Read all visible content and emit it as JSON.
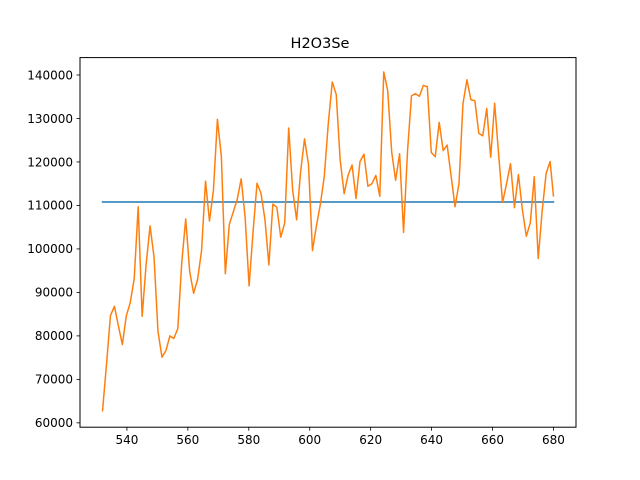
{
  "chart_data": {
    "type": "line",
    "title": "H2O3Se",
    "xlabel": "",
    "ylabel": "",
    "xlim": [
      524.6,
      687.4
    ],
    "ylim": [
      59000,
      144000
    ],
    "x_ticks": [
      540,
      560,
      580,
      600,
      620,
      640,
      660,
      680
    ],
    "y_ticks": [
      60000,
      70000,
      80000,
      90000,
      100000,
      110000,
      120000,
      130000,
      140000
    ],
    "x_tick_labels": [
      "540",
      "560",
      "580",
      "600",
      "620",
      "640",
      "660",
      "680"
    ],
    "y_tick_labels": [
      "60000",
      "70000",
      "80000",
      "90000",
      "100000",
      "110000",
      "120000",
      "130000",
      "140000"
    ],
    "grid": false,
    "legend": "none",
    "series": [
      {
        "color": "#1f77b4",
        "x": [
          532,
          680
        ],
        "y": [
          110800,
          110800
        ]
      },
      {
        "color": "#ff7f0e",
        "x": [
          532,
          533.3,
          534.6,
          535.9,
          537.2,
          538.5,
          539.8,
          541.1,
          542.4,
          543.7,
          545.0,
          546.3,
          547.6,
          548.9,
          550.2,
          551.5,
          552.8,
          554.1,
          555.4,
          556.7,
          558.0,
          559.3,
          560.6,
          561.9,
          563.2,
          564.5,
          565.8,
          567.1,
          568.4,
          569.7,
          571.0,
          572.3,
          573.6,
          574.9,
          576.2,
          577.5,
          578.8,
          580.1,
          581.4,
          582.7,
          584.0,
          585.3,
          586.6,
          587.9,
          589.2,
          590.5,
          591.8,
          593.1,
          594.4,
          595.7,
          597.0,
          598.3,
          599.6,
          600.9,
          602.2,
          603.5,
          604.8,
          606.1,
          607.4,
          608.7,
          610.0,
          611.3,
          612.6,
          613.9,
          615.2,
          616.5,
          617.8,
          619.1,
          620.4,
          621.7,
          623.0,
          624.3,
          625.6,
          626.9,
          628.2,
          629.5,
          630.8,
          632.1,
          633.4,
          634.7,
          636.0,
          637.3,
          638.6,
          639.9,
          641.2,
          642.5,
          643.8,
          645.1,
          646.4,
          647.7,
          649.0,
          650.3,
          651.6,
          652.9,
          654.2,
          655.5,
          656.8,
          658.1,
          659.4,
          660.7,
          662.0,
          663.3,
          664.6,
          665.9,
          667.2,
          668.5,
          669.8,
          671.1,
          672.4,
          673.7,
          675.0,
          676.3,
          677.6,
          678.9,
          680.0
        ],
        "y": [
          62800,
          73500,
          84700,
          86800,
          82300,
          78000,
          84600,
          87700,
          93200,
          109700,
          84500,
          96400,
          105300,
          98100,
          81000,
          75100,
          76600,
          80000,
          79400,
          81700,
          96900,
          106900,
          94800,
          89800,
          93000,
          99600,
          115600,
          106400,
          113500,
          129800,
          121200,
          94300,
          105600,
          108500,
          111400,
          116100,
          107300,
          91500,
          103900,
          115100,
          112800,
          106800,
          96300,
          110300,
          109600,
          102700,
          106000,
          127800,
          113500,
          106700,
          117700,
          125300,
          119400,
          99600,
          105300,
          110300,
          116800,
          128900,
          138400,
          135500,
          120400,
          112700,
          117000,
          119300,
          111600,
          120100,
          121800,
          114400,
          115000,
          116900,
          112100,
          140700,
          136400,
          122300,
          115800,
          121900,
          103800,
          122500,
          135200,
          135700,
          135100,
          137600,
          137300,
          122200,
          121200,
          129100,
          122600,
          123900,
          116800,
          109700,
          115100,
          133400,
          138900,
          134300,
          134100,
          126600,
          126000,
          132300,
          121100,
          133500,
          121800,
          110700,
          115000,
          119600,
          109500,
          117100,
          109000,
          102900,
          106000,
          116600,
          97800,
          108800,
          117400,
          120100,
          112200
        ]
      }
    ]
  }
}
